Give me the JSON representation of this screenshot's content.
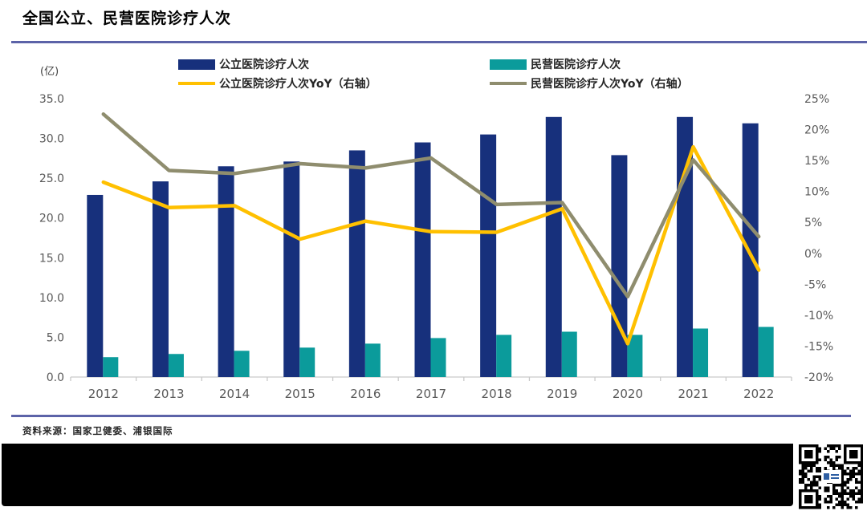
{
  "page": {
    "title": "全国公立、民营医院诊疗人次",
    "unit_label": "(亿)",
    "source_note": "资料来源：国家卫健委、浦银国际"
  },
  "colors": {
    "public_bar": "#17307c",
    "private_bar": "#0b9b9b",
    "public_yoy_line": "#ffc000",
    "private_yoy_line": "#8f8d6e",
    "rule": "#5c63a8",
    "axis_text": "#595959",
    "footer_band": "#000000"
  },
  "legend": [
    {
      "label": "公立医院诊疗人次",
      "type": "bar",
      "color": "#17307c"
    },
    {
      "label": "民营医院诊疗人次",
      "type": "bar",
      "color": "#0b9b9b"
    },
    {
      "label": "公立医院诊疗人次YoY（右轴）",
      "type": "line",
      "color": "#ffc000"
    },
    {
      "label": "民营医院诊疗人次YoY（右轴）",
      "type": "line",
      "color": "#8f8d6e"
    }
  ],
  "chart_data": {
    "type": "bar",
    "subtype": "combo bar+line, dual axis",
    "title": "全国公立、民营医院诊疗人次",
    "categories": [
      "2012",
      "2013",
      "2014",
      "2015",
      "2016",
      "2017",
      "2018",
      "2019",
      "2020",
      "2021",
      "2022"
    ],
    "series": [
      {
        "name": "公立医院诊疗人次",
        "type": "bar",
        "axis": "left",
        "unit": "亿",
        "color": "#17307c",
        "values": [
          22.9,
          24.6,
          26.5,
          27.1,
          28.5,
          29.5,
          30.5,
          32.7,
          27.9,
          32.7,
          31.9
        ]
      },
      {
        "name": "民营医院诊疗人次",
        "type": "bar",
        "axis": "left",
        "unit": "亿",
        "color": "#0b9b9b",
        "values": [
          2.5,
          2.9,
          3.3,
          3.7,
          4.2,
          4.9,
          5.3,
          5.7,
          5.3,
          6.1,
          6.3
        ]
      },
      {
        "name": "公立医院诊疗人次YoY（右轴）",
        "type": "line",
        "axis": "right",
        "unit": "%",
        "color": "#ffc000",
        "values": [
          11.5,
          7.4,
          7.7,
          2.3,
          5.2,
          3.5,
          3.4,
          7.2,
          -14.6,
          17.2,
          -2.7
        ]
      },
      {
        "name": "民营医院诊疗人次YoY（右轴）",
        "type": "line",
        "axis": "right",
        "unit": "%",
        "color": "#8f8d6e",
        "values": [
          22.5,
          13.4,
          12.9,
          14.5,
          13.8,
          15.4,
          7.9,
          8.2,
          -7.0,
          15.1,
          2.7
        ]
      }
    ],
    "left_axis": {
      "label": "(亿)",
      "min": 0,
      "max": 35,
      "step": 5,
      "ticks": [
        "0.0",
        "5.0",
        "10.0",
        "15.0",
        "20.0",
        "25.0",
        "30.0",
        "35.0"
      ]
    },
    "right_axis": {
      "label": "%",
      "min": -20,
      "max": 25,
      "step": 5,
      "ticks": [
        "-20%",
        "-15%",
        "-10%",
        "-5%",
        "0%",
        "5%",
        "10%",
        "15%",
        "20%",
        "25%"
      ]
    },
    "grid": false,
    "legend_position": "top"
  }
}
